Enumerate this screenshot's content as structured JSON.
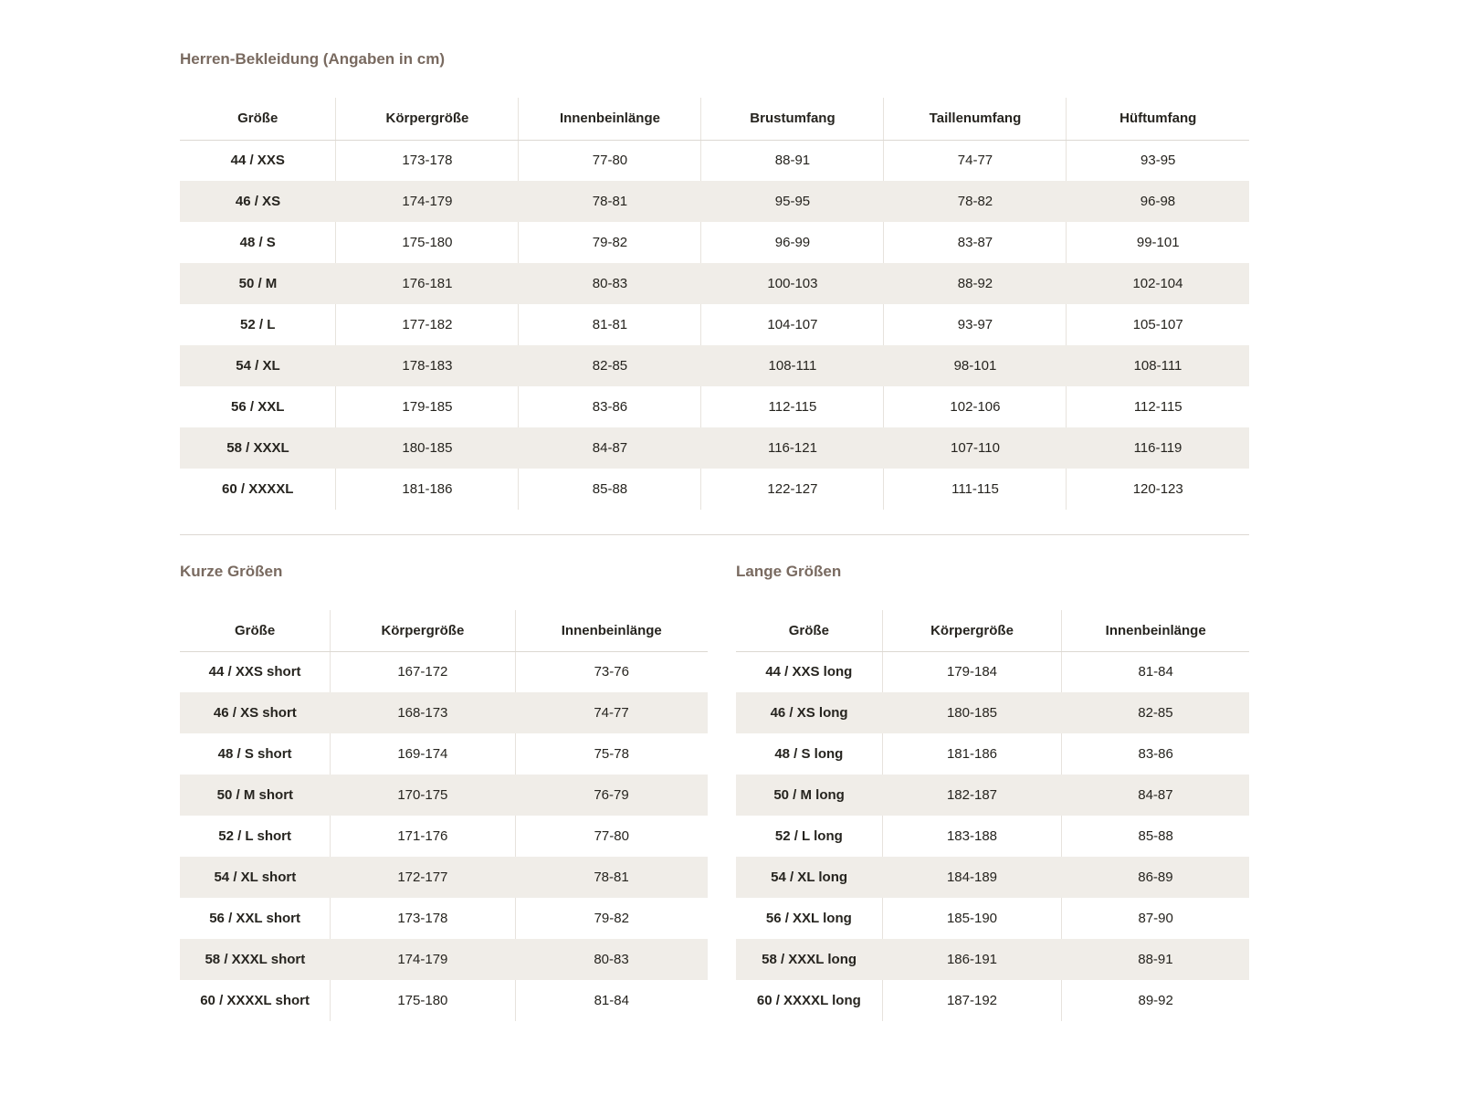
{
  "colors": {
    "accent": "#796a60",
    "stripe": "#f0ede8",
    "rule": "#dcd8d2",
    "text": "#26241f"
  },
  "main_table": {
    "title": "Herren-Bekleidung (Angaben in cm)",
    "headers": [
      "Größe",
      "Körpergröße",
      "Innenbeinlänge",
      "Brustumfang",
      "Taillenumfang",
      "Hüftumfang"
    ],
    "rows": [
      [
        "44 / XXS",
        "173-178",
        "77-80",
        "88-91",
        "74-77",
        "93-95"
      ],
      [
        "46 / XS",
        "174-179",
        "78-81",
        "95-95",
        "78-82",
        "96-98"
      ],
      [
        "48 / S",
        "175-180",
        "79-82",
        "96-99",
        "83-87",
        "99-101"
      ],
      [
        "50 / M",
        "176-181",
        "80-83",
        "100-103",
        "88-92",
        "102-104"
      ],
      [
        "52 / L",
        "177-182",
        "81-81",
        "104-107",
        "93-97",
        "105-107"
      ],
      [
        "54 / XL",
        "178-183",
        "82-85",
        "108-111",
        "98-101",
        "108-111"
      ],
      [
        "56 / XXL",
        "179-185",
        "83-86",
        "112-115",
        "102-106",
        "112-115"
      ],
      [
        "58 / XXXL",
        "180-185",
        "84-87",
        "116-121",
        "107-110",
        "116-119"
      ],
      [
        "60 / XXXXL",
        "181-186",
        "85-88",
        "122-127",
        "111-115",
        "120-123"
      ]
    ]
  },
  "short_table": {
    "title": "Kurze Größen",
    "headers": [
      "Größe",
      "Körpergröße",
      "Innenbeinlänge"
    ],
    "rows": [
      [
        "44 / XXS short",
        "167-172",
        "73-76"
      ],
      [
        "46 / XS short",
        "168-173",
        "74-77"
      ],
      [
        "48 / S short",
        "169-174",
        "75-78"
      ],
      [
        "50 / M short",
        "170-175",
        "76-79"
      ],
      [
        "52 / L short",
        "171-176",
        "77-80"
      ],
      [
        "54 / XL short",
        "172-177",
        "78-81"
      ],
      [
        "56 / XXL short",
        "173-178",
        "79-82"
      ],
      [
        "58 / XXXL short",
        "174-179",
        "80-83"
      ],
      [
        "60 / XXXXL short",
        "175-180",
        "81-84"
      ]
    ]
  },
  "long_table": {
    "title": "Lange Größen",
    "headers": [
      "Größe",
      "Körpergröße",
      "Innenbeinlänge"
    ],
    "rows": [
      [
        "44 / XXS long",
        "179-184",
        "81-84"
      ],
      [
        "46 / XS long",
        "180-185",
        "82-85"
      ],
      [
        "48 / S long",
        "181-186",
        "83-86"
      ],
      [
        "50 / M long",
        "182-187",
        "84-87"
      ],
      [
        "52 / L long",
        "183-188",
        "85-88"
      ],
      [
        "54 / XL long",
        "184-189",
        "86-89"
      ],
      [
        "56 / XXL long",
        "185-190",
        "87-90"
      ],
      [
        "58 / XXXL long",
        "186-191",
        "88-91"
      ],
      [
        "60 / XXXXL long",
        "187-192",
        "89-92"
      ]
    ]
  }
}
